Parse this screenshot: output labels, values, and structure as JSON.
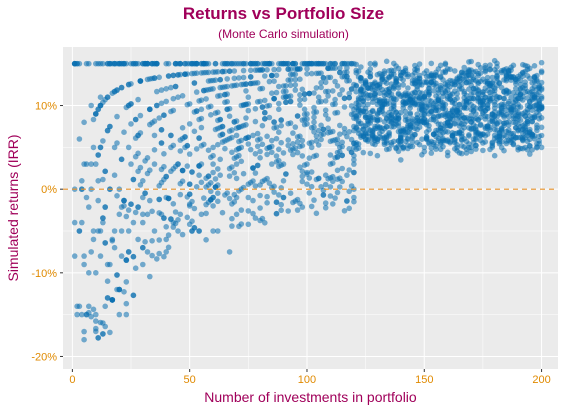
{
  "colors": {
    "title": "#a0005a",
    "axis_text": "#e08a00",
    "point": "#0a6fb0",
    "zero_line": "#e8922a",
    "panel": "#ebebeb",
    "grid": "#ffffff"
  },
  "chart_data": {
    "type": "scatter",
    "title": "Returns vs Portfolio Size",
    "subtitle": "(Monte Carlo simulation)",
    "xlabel": "Number of investments in portfolio",
    "ylabel": "Simulated returns (IRR)",
    "xlim": [
      -4,
      207
    ],
    "ylim": [
      -21.5,
      17
    ],
    "x_ticks": [
      0,
      50,
      100,
      150,
      200
    ],
    "x_tick_labels": [
      "0",
      "50",
      "100",
      "150",
      "200"
    ],
    "y_ticks": [
      -20,
      -10,
      0,
      10
    ],
    "y_tick_labels": [
      "-20%",
      "-10%",
      "0%",
      "10%"
    ],
    "reference_line": {
      "y": 0,
      "style": "dashed"
    },
    "grid": true,
    "legend": "none",
    "series": [
      {
        "x_range": [
          1,
          200
        ],
        "y_range_percent": [
          -18,
          15
        ],
        "points": [
          [
            1,
            -8
          ],
          [
            1,
            -4
          ],
          [
            1,
            0
          ],
          [
            1,
            15
          ],
          [
            2,
            -14
          ],
          [
            3,
            -14
          ],
          [
            3,
            6
          ],
          [
            4,
            -4
          ],
          [
            4,
            1
          ],
          [
            5,
            -8
          ],
          [
            5,
            -18
          ],
          [
            5,
            8
          ],
          [
            6,
            -1
          ],
          [
            6,
            3
          ],
          [
            7,
            -10
          ],
          [
            7,
            -14
          ],
          [
            8,
            3
          ],
          [
            8,
            10
          ],
          [
            9,
            -6
          ],
          [
            9,
            5
          ],
          [
            10,
            -17
          ],
          [
            10,
            -10
          ],
          [
            11,
            -5
          ],
          [
            11,
            1
          ],
          [
            12,
            11
          ],
          [
            12,
            -8
          ],
          [
            13,
            -16
          ],
          [
            13,
            -4
          ],
          [
            14,
            -14
          ],
          [
            15,
            -11
          ],
          [
            15,
            7
          ],
          [
            16,
            -9
          ],
          [
            17,
            -6
          ],
          [
            18,
            -7
          ],
          [
            19,
            -12
          ],
          [
            20,
            -3
          ],
          [
            21,
            -8
          ],
          [
            22,
            -2
          ],
          [
            23,
            -15
          ],
          [
            24,
            -5
          ],
          [
            26,
            -4
          ],
          [
            28,
            -6
          ],
          [
            30,
            -4
          ],
          [
            32,
            -3
          ],
          [
            35,
            -5
          ],
          [
            38,
            -3
          ],
          [
            40,
            -1
          ],
          [
            43,
            -4
          ],
          [
            46,
            -3
          ],
          [
            50,
            -2
          ],
          [
            55,
            -3
          ],
          [
            60,
            -2
          ],
          [
            62,
            -5
          ],
          [
            67,
            -7.5
          ],
          [
            70,
            -1
          ],
          [
            80,
            0.5
          ],
          [
            90,
            1
          ],
          [
            100,
            2
          ],
          [
            120,
            3
          ],
          [
            140,
            3.5
          ],
          [
            160,
            4
          ],
          [
            180,
            4
          ],
          [
            200,
            5
          ],
          [
            150,
            5
          ],
          [
            130,
            4
          ],
          [
            110,
            3
          ],
          [
            170,
            4.5
          ],
          [
            190,
            5
          ],
          [
            120,
            7
          ],
          [
            160,
            8
          ]
        ]
      }
    ]
  }
}
